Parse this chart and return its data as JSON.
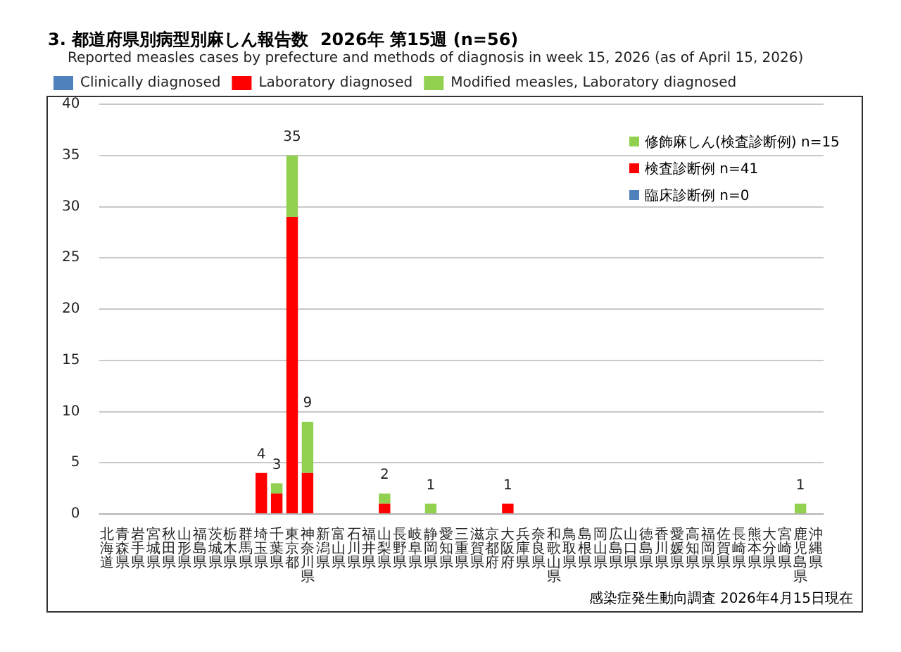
{
  "chart_data": {
    "type": "bar",
    "title": "3. 都道府県別病型別麻しん報告数  2026年 第15週 (n=56)",
    "subtitle": "Reported measles cases by prefecture and methods of diagnosis in week 15, 2026 (as of April 15, 2026)",
    "categories": [
      "北海道",
      "青森県",
      "岩手県",
      "宮城県",
      "秋田県",
      "山形県",
      "福島県",
      "茨城県",
      "栃木県",
      "群馬県",
      "埼玉県",
      "千葉県",
      "東京都",
      "神奈川県",
      "新潟県",
      "富山県",
      "石川県",
      "福井県",
      "山梨県",
      "長野県",
      "岐阜県",
      "静岡県",
      "愛知県",
      "三重県",
      "滋賀県",
      "京都府",
      "大阪府",
      "兵庫県",
      "奈良県",
      "和歌山県",
      "鳥取県",
      "島根県",
      "岡山県",
      "広島県",
      "山口県",
      "徳島県",
      "香川県",
      "愛媛県",
      "高知県",
      "福岡県",
      "佐賀県",
      "長崎県",
      "熊本県",
      "大分県",
      "宮崎県",
      "鹿児島県",
      "沖縄県"
    ],
    "series": [
      {
        "name": "Clinically diagnosed",
        "color": "#4f81bd",
        "values": [
          0,
          0,
          0,
          0,
          0,
          0,
          0,
          0,
          0,
          0,
          0,
          0,
          0,
          0,
          0,
          0,
          0,
          0,
          0,
          0,
          0,
          0,
          0,
          0,
          0,
          0,
          0,
          0,
          0,
          0,
          0,
          0,
          0,
          0,
          0,
          0,
          0,
          0,
          0,
          0,
          0,
          0,
          0,
          0,
          0,
          0,
          0
        ]
      },
      {
        "name": "Laboratory diagnosed",
        "color": "#ff0000",
        "values": [
          0,
          0,
          0,
          0,
          0,
          0,
          0,
          0,
          0,
          0,
          4,
          2,
          29,
          4,
          0,
          0,
          0,
          0,
          1,
          0,
          0,
          0,
          0,
          0,
          0,
          0,
          1,
          0,
          0,
          0,
          0,
          0,
          0,
          0,
          0,
          0,
          0,
          0,
          0,
          0,
          0,
          0,
          0,
          0,
          0,
          0,
          0
        ]
      },
      {
        "name": "Modified measles, Laboratory diagnosed",
        "color": "#92d050",
        "values": [
          0,
          0,
          0,
          0,
          0,
          0,
          0,
          0,
          0,
          0,
          0,
          1,
          6,
          5,
          0,
          0,
          0,
          0,
          1,
          0,
          0,
          1,
          0,
          0,
          0,
          0,
          0,
          0,
          0,
          0,
          0,
          0,
          0,
          0,
          0,
          0,
          0,
          0,
          0,
          0,
          0,
          0,
          0,
          0,
          0,
          1,
          0
        ]
      }
    ],
    "totals": [
      null,
      null,
      null,
      null,
      null,
      null,
      null,
      null,
      null,
      null,
      "4",
      "3",
      "35",
      "9",
      null,
      null,
      null,
      null,
      "2",
      null,
      null,
      "1",
      null,
      null,
      null,
      null,
      "1",
      null,
      null,
      null,
      null,
      null,
      null,
      null,
      null,
      null,
      null,
      null,
      null,
      null,
      null,
      null,
      null,
      null,
      null,
      "1",
      null
    ],
    "stacked": true,
    "ylim": [
      0,
      40
    ],
    "yticks": [
      0,
      5,
      10,
      15,
      20,
      25,
      30,
      35,
      40
    ],
    "grid": "y",
    "legend": "top left",
    "annotations": [
      "修飾麻しん(検査診断例) n=15",
      "検査診断例 n=41",
      "臨床診断例 n=0",
      "感染症発生動向調査 2026年4月15日現在"
    ]
  }
}
